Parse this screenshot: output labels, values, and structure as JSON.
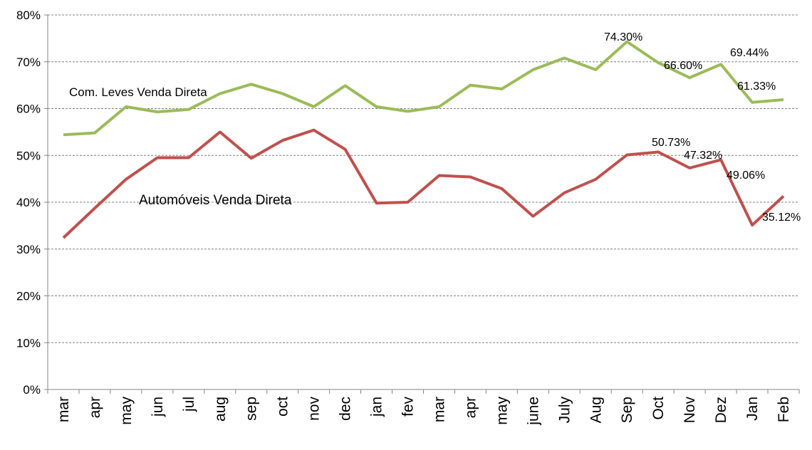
{
  "chart_data": {
    "type": "line",
    "title": "",
    "xlabel": "",
    "ylabel": "",
    "ylim": [
      0,
      80
    ],
    "yticks": [
      "0%",
      "10%",
      "20%",
      "30%",
      "40%",
      "50%",
      "60%",
      "70%",
      "80%"
    ],
    "grid": true,
    "categories": [
      "mar",
      "apr",
      "may",
      "jun",
      "jul",
      "aug",
      "sep",
      "oct",
      "nov",
      "dec",
      "jan",
      "fev",
      "mar",
      "apr",
      "may",
      "june",
      "July",
      "Aug",
      "Sep",
      "Oct",
      "Nov",
      "Dez",
      "Jan",
      "Feb"
    ],
    "series": [
      {
        "name": "Com. Leves Venda Direta",
        "color": "#9BBB59",
        "values": [
          54.4,
          54.8,
          60.4,
          59.3,
          59.8,
          63.2,
          65.2,
          63.2,
          60.4,
          64.9,
          60.4,
          59.4,
          60.4,
          65.0,
          64.2,
          68.3,
          70.8,
          68.3,
          74.3,
          69.8,
          66.6,
          69.44,
          61.33,
          61.9
        ],
        "data_labels": [
          {
            "index": 18,
            "text": "74.30%"
          },
          {
            "index": 20,
            "text": "66.60%"
          },
          {
            "index": 21,
            "text": "69.44%"
          },
          {
            "index": 22,
            "text": "61.33%"
          }
        ]
      },
      {
        "name": "Automóveis Venda Direta",
        "color": "#C0504D",
        "values": [
          32.4,
          38.7,
          44.9,
          49.5,
          49.5,
          55.0,
          49.4,
          53.2,
          55.4,
          51.3,
          39.8,
          40.0,
          45.7,
          45.4,
          42.9,
          37.0,
          42.0,
          44.9,
          50.1,
          50.73,
          47.32,
          49.06,
          35.12,
          41.3
        ],
        "data_labels": [
          {
            "index": 19,
            "text": "50.73%"
          },
          {
            "index": 20,
            "text": "47.32%"
          },
          {
            "index": 21,
            "text": "49.06%"
          },
          {
            "index": 22,
            "text": "35.12%"
          }
        ]
      }
    ]
  }
}
